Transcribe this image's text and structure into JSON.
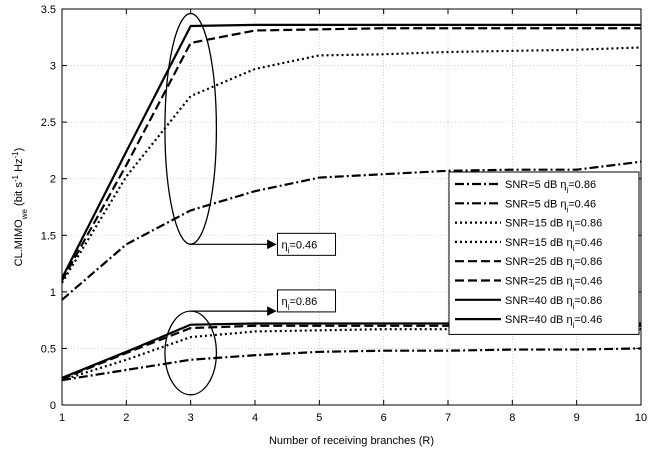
{
  "chart_data": {
    "type": "line",
    "xlabel": "Number of receiving branches (R)",
    "ylabel": "CL.MIMO",
    "ylabel_sub": "we",
    "ylabel_units_prefix": "(bit s",
    "ylabel_units_sup1": "-1",
    "ylabel_units_mid": " Hz",
    "ylabel_units_sup2": "-1",
    "ylabel_units_suffix": ")",
    "xlim": [
      1,
      10
    ],
    "ylim": [
      0,
      3.5
    ],
    "xticks": [
      1,
      2,
      3,
      4,
      5,
      6,
      7,
      8,
      9,
      10
    ],
    "yticks": [
      0,
      0.5,
      1,
      1.5,
      2,
      2.5,
      3,
      3.5
    ],
    "grid": true,
    "legend_position": "right",
    "series": [
      {
        "name": "SNR=5 dB η_i=0.86",
        "legend_text": "SNR=5 dB η",
        "legend_sub": "i",
        "legend_tail": "=0.86",
        "style": "dashdot",
        "x": [
          1,
          2,
          3,
          4,
          5,
          6,
          7,
          8,
          9,
          10
        ],
        "y": [
          0.22,
          0.31,
          0.4,
          0.44,
          0.47,
          0.48,
          0.48,
          0.49,
          0.49,
          0.5
        ]
      },
      {
        "name": "SNR=5 dB η_i=0.46",
        "legend_text": "SNR=5 dB η",
        "legend_sub": "i",
        "legend_tail": "=0.46",
        "style": "dashdot",
        "x": [
          1,
          2,
          3,
          4,
          5,
          6,
          7,
          8,
          9,
          10
        ],
        "y": [
          0.93,
          1.42,
          1.72,
          1.89,
          2.01,
          2.04,
          2.07,
          2.08,
          2.08,
          2.15
        ]
      },
      {
        "name": "SNR=15 dB η_i=0.86",
        "legend_text": "SNR=15 dB η",
        "legend_sub": "i",
        "legend_tail": "=0.86",
        "style": "dotted",
        "x": [
          1,
          2,
          3,
          4,
          5,
          6,
          7,
          8,
          9,
          10
        ],
        "y": [
          0.22,
          0.4,
          0.6,
          0.65,
          0.66,
          0.67,
          0.67,
          0.67,
          0.67,
          0.67
        ]
      },
      {
        "name": "SNR=15 dB η_i=0.46",
        "legend_text": "SNR=15 dB η",
        "legend_sub": "i",
        "legend_tail": "=0.46",
        "style": "dotted",
        "x": [
          1,
          2,
          3,
          4,
          5,
          6,
          7,
          8,
          9,
          10
        ],
        "y": [
          1.08,
          2.02,
          2.73,
          2.97,
          3.09,
          3.1,
          3.12,
          3.13,
          3.14,
          3.16
        ]
      },
      {
        "name": "SNR=25 dB η_i=0.86",
        "legend_text": "SNR=25 dB η",
        "legend_sub": "i",
        "legend_tail": "=0.86",
        "style": "dashed",
        "x": [
          1,
          2,
          3,
          4,
          5,
          6,
          7,
          8,
          9,
          10
        ],
        "y": [
          0.23,
          0.46,
          0.68,
          0.7,
          0.7,
          0.7,
          0.7,
          0.7,
          0.7,
          0.7
        ]
      },
      {
        "name": "SNR=25 dB η_i=0.46",
        "legend_text": "SNR=25 dB η",
        "legend_sub": "i",
        "legend_tail": "=0.46",
        "style": "dashed",
        "x": [
          1,
          2,
          3,
          4,
          5,
          6,
          7,
          8,
          9,
          10
        ],
        "y": [
          1.1,
          2.12,
          3.2,
          3.31,
          3.32,
          3.33,
          3.33,
          3.33,
          3.33,
          3.33
        ]
      },
      {
        "name": "SNR=40 dB η_i=0.86",
        "legend_text": "SNR=40 dB η",
        "legend_sub": "i",
        "legend_tail": "=0.86",
        "style": "solid",
        "x": [
          1,
          2,
          3,
          4,
          5,
          6,
          7,
          8,
          9,
          10
        ],
        "y": [
          0.24,
          0.47,
          0.71,
          0.72,
          0.72,
          0.72,
          0.72,
          0.72,
          0.72,
          0.72
        ]
      },
      {
        "name": "SNR=40 dB η_i=0.46",
        "legend_text": "SNR=40 dB η",
        "legend_sub": "i",
        "legend_tail": "=0.46",
        "style": "solid",
        "x": [
          1,
          2,
          3,
          4,
          5,
          6,
          7,
          8,
          9,
          10
        ],
        "y": [
          1.12,
          2.24,
          3.35,
          3.36,
          3.36,
          3.36,
          3.36,
          3.36,
          3.36,
          3.36
        ]
      }
    ],
    "annotations": [
      {
        "text_prefix": "η",
        "text_sub": "i",
        "text_suffix": "=0.46",
        "ellipse_center": [
          3,
          2.44
        ],
        "ellipse_rx": 0.4,
        "ellipse_ry": 1.02,
        "arrow_from": [
          3,
          1.42
        ],
        "box_x": 4.35,
        "box_y": 1.42
      },
      {
        "text_prefix": "η",
        "text_sub": "i",
        "text_suffix": "=0.86",
        "ellipse_center": [
          3,
          0.46
        ],
        "ellipse_rx": 0.4,
        "ellipse_ry": 0.37,
        "arrow_from": [
          3,
          0.83
        ],
        "box_x": 4.35,
        "box_y": 0.92
      }
    ]
  }
}
